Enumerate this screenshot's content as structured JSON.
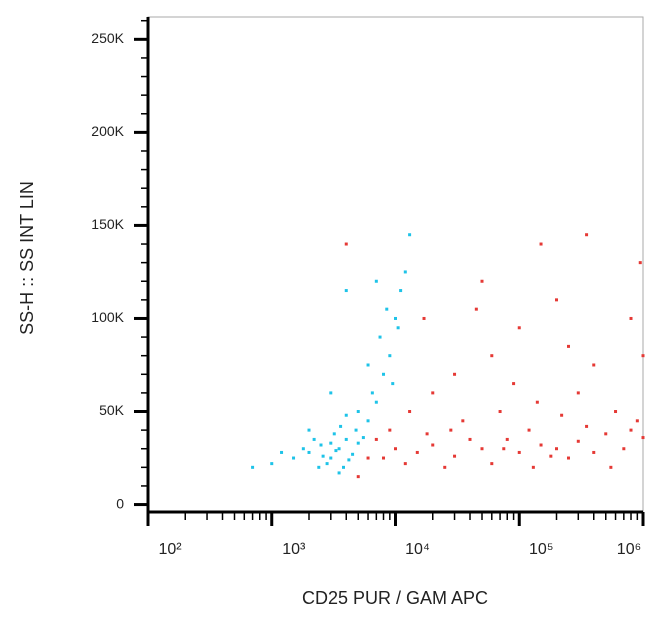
{
  "chart_data": {
    "type": "scatter",
    "x_label": "CD25 PUR / GAM APC",
    "y_label": "SS-H :: SS INT LIN",
    "xscale": "log",
    "xlim": [
      100,
      1000000
    ],
    "ylim": [
      -4000,
      262000
    ],
    "xticks": [
      {
        "value": 100,
        "label": "10²"
      },
      {
        "value": 1000,
        "label": "10³"
      },
      {
        "value": 10000,
        "label": "10⁴"
      },
      {
        "value": 100000,
        "label": "10⁵"
      },
      {
        "value": 1000000,
        "label": "10⁶"
      }
    ],
    "yticks": [
      0,
      {
        "value": 50000,
        "label": "50K"
      },
      {
        "value": 100000,
        "label": "100K"
      },
      {
        "value": 150000,
        "label": "150K"
      },
      {
        "value": 200000,
        "label": "200K"
      },
      {
        "value": 250000,
        "label": "250K"
      }
    ],
    "series": [
      {
        "color": "#e53935",
        "x": [
          8000,
          10000,
          15000,
          20000,
          30000,
          50000,
          80000,
          100000,
          150000,
          200000,
          300000,
          500000,
          800000,
          1000000,
          12000,
          25000,
          40000,
          60000,
          120000,
          250000,
          400000,
          700000,
          900000,
          18000,
          35000,
          70000,
          140000,
          220000,
          350000,
          600000,
          30000,
          60000,
          100000,
          200000,
          400000,
          800000,
          50000,
          150000,
          350000,
          20000,
          90000,
          300000,
          950000,
          45000,
          250000,
          6000,
          7000,
          9000,
          5000,
          130000,
          550000,
          180000,
          75000,
          28000,
          13000,
          17000,
          4000,
          1000000
        ],
        "values": [
          25000,
          30000,
          28000,
          32000,
          26000,
          30000,
          35000,
          28000,
          32000,
          30000,
          34000,
          38000,
          40000,
          36000,
          22000,
          20000,
          35000,
          22000,
          40000,
          25000,
          28000,
          30000,
          45000,
          38000,
          45000,
          50000,
          55000,
          48000,
          42000,
          50000,
          70000,
          80000,
          95000,
          110000,
          75000,
          100000,
          120000,
          140000,
          145000,
          60000,
          65000,
          60000,
          130000,
          105000,
          85000,
          25000,
          35000,
          40000,
          15000,
          20000,
          20000,
          26000,
          30000,
          40000,
          50000,
          100000,
          140000,
          80000
        ]
      },
      {
        "color": "#1ec3e8",
        "x": [
          2000,
          2500,
          3000,
          3500,
          4000,
          2800,
          3200,
          4500,
          2200,
          3800,
          5000,
          2600,
          3300,
          4200,
          1800,
          3600,
          4800,
          2400,
          3000,
          5500,
          1500,
          1200,
          6000,
          7000,
          6500,
          8000,
          9000,
          7500,
          10000,
          11000,
          12000,
          9500,
          5000,
          4000,
          8500,
          6000,
          3500,
          2000,
          1000,
          700,
          13000,
          10500,
          7000,
          4000,
          3000
        ],
        "values": [
          28000,
          32000,
          25000,
          30000,
          35000,
          22000,
          38000,
          27000,
          35000,
          20000,
          33000,
          26000,
          29000,
          24000,
          30000,
          42000,
          40000,
          20000,
          33000,
          36000,
          25000,
          28000,
          45000,
          55000,
          60000,
          70000,
          80000,
          90000,
          100000,
          115000,
          125000,
          65000,
          50000,
          48000,
          105000,
          75000,
          17000,
          40000,
          22000,
          20000,
          145000,
          95000,
          120000,
          115000,
          60000
        ]
      }
    ]
  }
}
